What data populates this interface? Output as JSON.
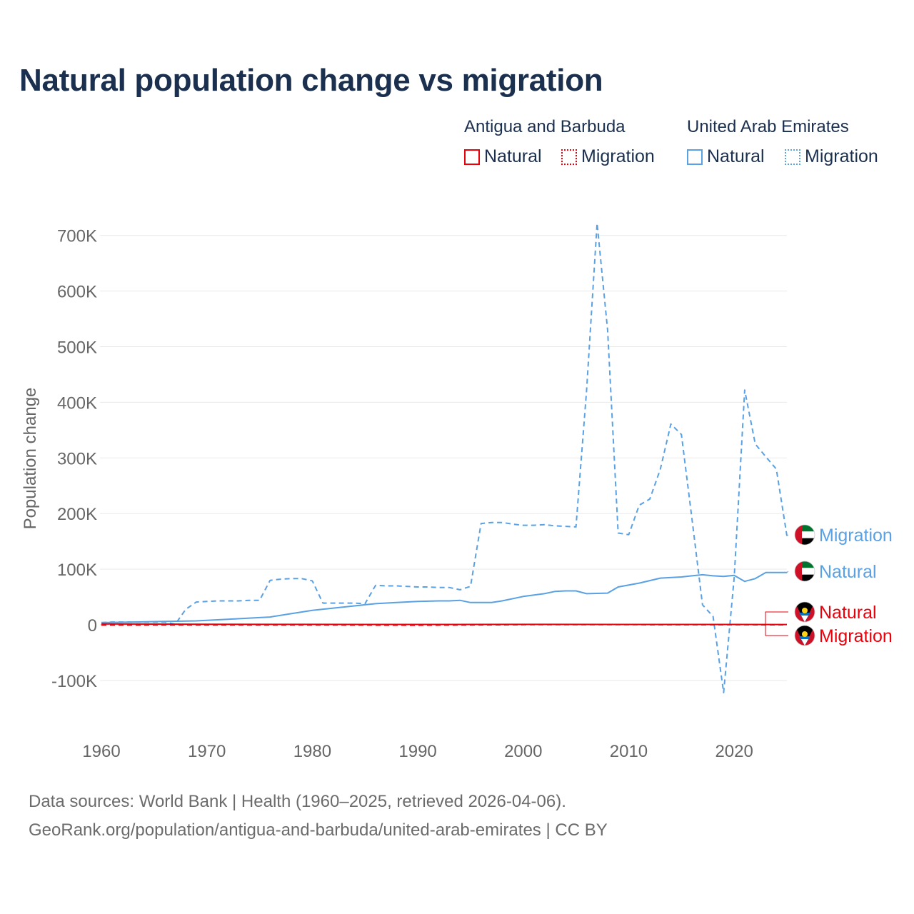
{
  "title": "Natural population change vs migration",
  "legend": {
    "groups": [
      {
        "country": "Antigua and Barbuda",
        "color": "#e8000b",
        "natural_label": "Natural",
        "migration_label": "Migration"
      },
      {
        "country": "United Arab Emirates",
        "color": "#5aa1e3",
        "natural_label": "Natural",
        "migration_label": "Migration"
      }
    ]
  },
  "chart_data": {
    "type": "line",
    "title": "Natural population change vs migration",
    "xlabel": "",
    "ylabel": "Population change",
    "xlim": [
      1960,
      2025
    ],
    "ylim": [
      -180000,
      760000
    ],
    "x_ticks": [
      1960,
      1970,
      1980,
      1990,
      2000,
      2010,
      2020
    ],
    "x_tick_labels": [
      "1960",
      "1970",
      "1980",
      "1990",
      "2000",
      "2010",
      "2020"
    ],
    "y_ticks": [
      -100000,
      0,
      100000,
      200000,
      300000,
      400000,
      500000,
      600000,
      700000
    ],
    "y_tick_labels": [
      "-100K",
      "0",
      "100K",
      "200K",
      "300K",
      "400K",
      "500K",
      "600K",
      "700K"
    ],
    "grid": true,
    "series": [
      {
        "name": "United Arab Emirates – Migration",
        "country": "United Arab Emirates",
        "kind": "Migration",
        "color": "#5aa1e3",
        "dash": "dashed",
        "end_label": "Migration",
        "flag": "uae",
        "x": [
          1960,
          1961,
          1962,
          1963,
          1964,
          1965,
          1966,
          1967,
          1968,
          1969,
          1970,
          1971,
          1972,
          1973,
          1974,
          1975,
          1976,
          1977,
          1978,
          1979,
          1980,
          1981,
          1982,
          1983,
          1984,
          1985,
          1986,
          1987,
          1988,
          1989,
          1990,
          1991,
          1992,
          1993,
          1994,
          1995,
          1996,
          1997,
          1998,
          1999,
          2000,
          2001,
          2002,
          2003,
          2004,
          2005,
          2006,
          2007,
          2008,
          2009,
          2010,
          2011,
          2012,
          2013,
          2014,
          2015,
          2016,
          2017,
          2018,
          2019,
          2020,
          2021,
          2022,
          2023,
          2024,
          2025
        ],
        "values": [
          4000,
          5000,
          5000,
          5000,
          5000,
          5000,
          5000,
          1000,
          28000,
          41000,
          42000,
          43000,
          43000,
          43000,
          44000,
          44000,
          80000,
          82000,
          83000,
          83000,
          79000,
          39000,
          39000,
          39000,
          39000,
          38000,
          71000,
          70000,
          70000,
          69000,
          68000,
          68000,
          67000,
          67000,
          63000,
          69000,
          182000,
          184000,
          184000,
          181000,
          179000,
          179000,
          180000,
          178000,
          177000,
          176000,
          420000,
          722000,
          530000,
          165000,
          162000,
          215000,
          226000,
          280000,
          361000,
          342000,
          190000,
          36000,
          15000,
          -122000,
          85000,
          422000,
          325000,
          302000,
          280000,
          160000
        ]
      },
      {
        "name": "United Arab Emirates – Natural",
        "country": "United Arab Emirates",
        "kind": "Natural",
        "color": "#5aa1e3",
        "dash": "solid",
        "end_label": "Natural",
        "flag": "uae",
        "x": [
          1960,
          1963,
          1966,
          1969,
          1972,
          1975,
          1976,
          1978,
          1980,
          1982,
          1984,
          1986,
          1988,
          1990,
          1992,
          1993,
          1994,
          1995,
          1997,
          1998,
          2000,
          2002,
          2003,
          2004,
          2005,
          2006,
          2008,
          2009,
          2011,
          2013,
          2015,
          2016,
          2017,
          2018,
          2019,
          2020,
          2021,
          2022,
          2023,
          2025
        ],
        "values": [
          4000,
          5000,
          6000,
          7000,
          10000,
          13000,
          14000,
          20000,
          26000,
          30000,
          34000,
          38000,
          40000,
          42000,
          43000,
          43000,
          44000,
          40000,
          40000,
          43000,
          51000,
          56000,
          60000,
          61000,
          61000,
          56000,
          57000,
          68000,
          75000,
          84000,
          86000,
          88000,
          90000,
          88000,
          87000,
          89000,
          78000,
          83000,
          94000,
          94000
        ]
      },
      {
        "name": "Antigua and Barbuda – Natural",
        "country": "Antigua and Barbuda",
        "kind": "Natural",
        "color": "#e8000b",
        "dash": "solid",
        "end_label": "Natural",
        "flag": "antigua",
        "x": [
          1960,
          1970,
          1980,
          1990,
          2000,
          2010,
          2020,
          2025
        ],
        "values": [
          1500,
          900,
          800,
          700,
          800,
          700,
          600,
          500
        ]
      },
      {
        "name": "Antigua and Barbuda – Migration",
        "country": "Antigua and Barbuda",
        "kind": "Migration",
        "color": "#e8000b",
        "dash": "dashed",
        "end_label": "Migration",
        "flag": "antigua",
        "x": [
          1960,
          1970,
          1980,
          1990,
          2000,
          2010,
          2020,
          2025
        ],
        "values": [
          -500,
          -200,
          -300,
          -800,
          300,
          200,
          100,
          0
        ]
      }
    ]
  },
  "source": {
    "line1": "Data sources: World Bank | Health (1960–2025, retrieved 2026-04-06).",
    "line2": "GeoRank.org/population/antigua-and-barbuda/united-arab-emirates | CC BY"
  }
}
